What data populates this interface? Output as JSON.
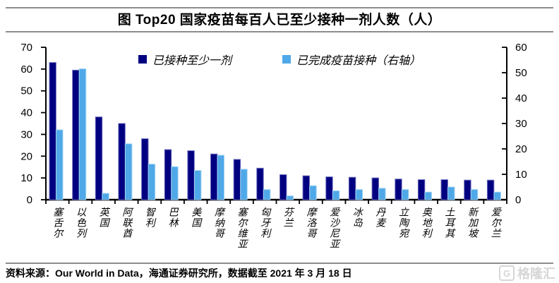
{
  "header": {
    "title": "图  Top20 国家疫苗每百人已至少接种一剂人数（人）"
  },
  "chart_data": {
    "type": "bar",
    "title": "图  Top20 国家疫苗每百人已至少接种一剂人数（人）",
    "categories": [
      "塞舌尔",
      "以色列",
      "英国",
      "阿联酋",
      "智利",
      "巴林",
      "美国",
      "摩纳哥",
      "塞尔维亚",
      "匈牙利",
      "芬兰",
      "摩洛哥",
      "爱沙尼亚",
      "冰岛",
      "丹麦",
      "立陶宛",
      "奥地利",
      "土耳其",
      "新加坡",
      "爱尔兰"
    ],
    "series": [
      {
        "name": "已接种至少一剂",
        "axis": "left",
        "color": "#000080",
        "edge": "#6b6bbd",
        "values": [
          63,
          59.5,
          38,
          35,
          28,
          23,
          22.5,
          21,
          18.5,
          14.5,
          11.5,
          11,
          10.5,
          10.3,
          10,
          9.5,
          9.2,
          9.2,
          9,
          9
        ]
      },
      {
        "name": "已完成疫苗接种（右轴）",
        "axis": "right",
        "color": "#4FA8E8",
        "edge": "#9fd2f2",
        "values": [
          27.5,
          51.5,
          2.5,
          22,
          14,
          13,
          11.5,
          17.5,
          12,
          4,
          1.5,
          5.5,
          3.5,
          4,
          4.5,
          4,
          3,
          5,
          4,
          3
        ]
      }
    ],
    "left_axis": {
      "min": 0,
      "max": 70,
      "step": 10
    },
    "right_axis": {
      "min": 0,
      "max": 60,
      "step": 10
    },
    "legend_position": "top-center",
    "grid": false
  },
  "footer": {
    "source": "资料来源：Our World in Data，海通证券研究所，数据截至 2021 年 3 月 18 日",
    "watermark_icon": "G",
    "watermark_text": "格隆汇"
  }
}
